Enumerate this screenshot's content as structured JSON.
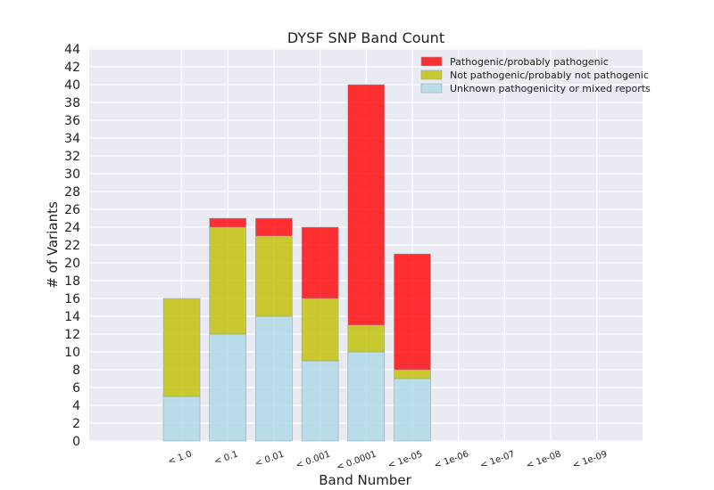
{
  "chart_data": {
    "type": "bar",
    "stacked": true,
    "title": "DYSF SNP Band Count",
    "xlabel": "Band Number",
    "ylabel": "# of Variants",
    "ylim": [
      0,
      44
    ],
    "yticks": [
      0,
      2,
      4,
      6,
      8,
      10,
      12,
      14,
      16,
      18,
      20,
      22,
      24,
      26,
      28,
      30,
      32,
      34,
      36,
      38,
      40,
      42,
      44
    ],
    "categories": [
      "< 1.0",
      "< 0.1",
      "< 0.01",
      "< 0.001",
      "< 0.0001",
      "< 1e-05",
      "< 1e-06",
      "< 1e-07",
      "< 1e-08",
      "< 1e-09"
    ],
    "series": [
      {
        "name": "Unknown pathogenicity or mixed reports",
        "color": "#add8e6",
        "values": [
          5,
          12,
          14,
          9,
          10,
          7,
          0,
          0,
          0,
          0
        ]
      },
      {
        "name": "Not pathogenic/probably not pathogenic",
        "color": "#bfbf00",
        "values": [
          11,
          12,
          9,
          7,
          3,
          1,
          0,
          0,
          0,
          0
        ]
      },
      {
        "name": "Pathogenic/probably pathogenic",
        "color": "#ff0000",
        "values": [
          0,
          1,
          2,
          8,
          27,
          13,
          0,
          0,
          0,
          0
        ]
      }
    ],
    "legend_order": [
      "Pathogenic/probably pathogenic",
      "Not pathogenic/probably not pathogenic",
      "Unknown pathogenicity or mixed reports"
    ],
    "legend_position": "top-right",
    "grid": true,
    "background": "#eaeaf2"
  }
}
